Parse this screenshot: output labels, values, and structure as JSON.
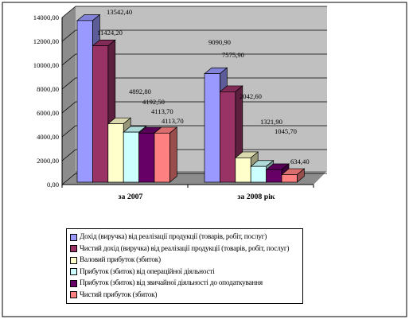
{
  "chart_data": {
    "type": "bar",
    "categories": [
      "за 2007",
      "за 2008 рік"
    ],
    "ylim": [
      0,
      14000
    ],
    "yticks": [
      "0,00",
      "2000,00",
      "4000,00",
      "6000,00",
      "8000,00",
      "10000,00",
      "12000,00",
      "14000,00"
    ],
    "legend_position": "bottom",
    "series": [
      {
        "name": "Дохід (виручка) від реалізації продукції (товарів, робіт, послуг)",
        "color": "#9999ff",
        "values": [
          13542.4,
          9090.9
        ],
        "labels": [
          "13542,40",
          "9090,90"
        ]
      },
      {
        "name": "Чистий дохід (виручка) від реалізації продукції (товарів, робіт, послуг)",
        "color": "#993366",
        "values": [
          11424.2,
          7575.9
        ],
        "labels": [
          "11424,20",
          "7575,90"
        ]
      },
      {
        "name": "Валовий прибуток (збиток)",
        "color": "#ffffcc",
        "values": [
          4892.8,
          2042.6
        ],
        "labels": [
          "4892,80",
          "2042,60"
        ]
      },
      {
        "name": "Прибуток (збиток) від операційної діяльності",
        "color": "#ccffff",
        "values": [
          4192.5,
          1321.9
        ],
        "labels": [
          "4192,50",
          "1321,90"
        ]
      },
      {
        "name": "Прибуток (збиток) від звичайної діяльності до оподаткування",
        "color": "#660066",
        "values": [
          4113.7,
          1045.7
        ],
        "labels": [
          "4113,70",
          "1045,70"
        ]
      },
      {
        "name": "Чистий прибуток (збиток)",
        "color": "#ff8080",
        "values": [
          4113.7,
          634.4
        ],
        "labels": [
          "4113,70",
          "634,40"
        ]
      }
    ]
  }
}
